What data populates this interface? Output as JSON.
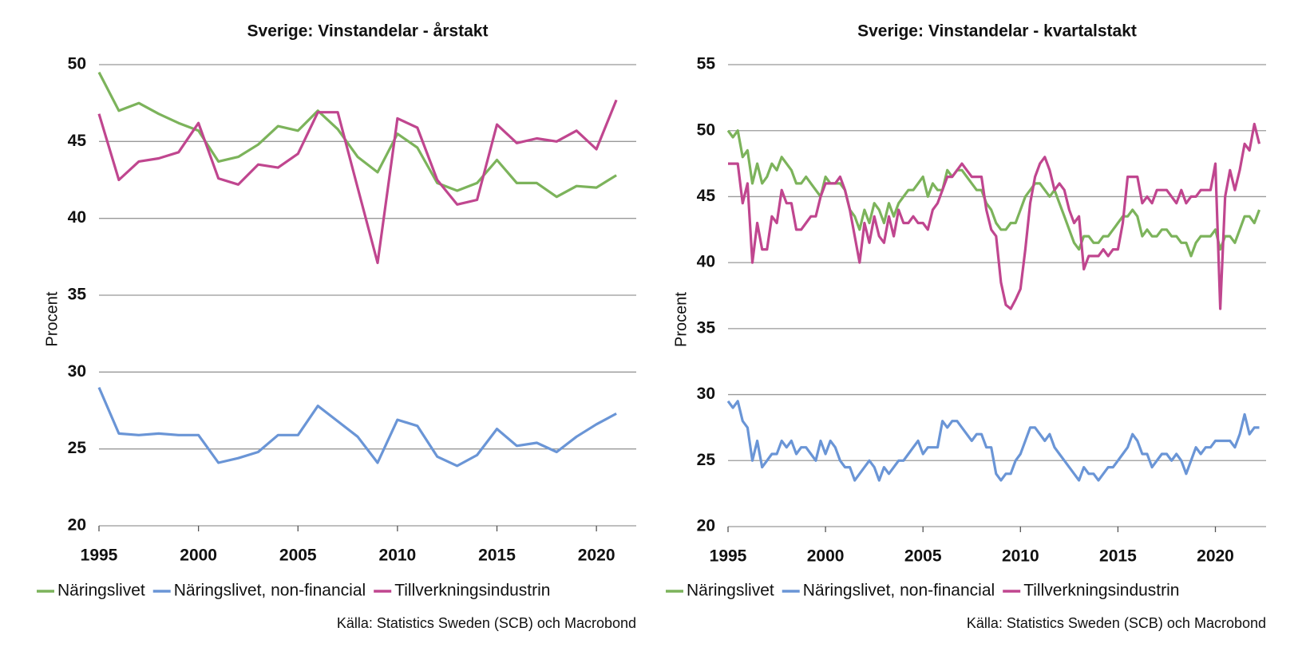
{
  "chart_data": [
    {
      "type": "line",
      "title": "Sverige: Vinstandelar - årstakt",
      "y_label": "Procent",
      "source": "Källa: Statistics Sweden (SCB) och Macrobond",
      "x": [
        1995,
        1996,
        1997,
        1998,
        1999,
        2000,
        2001,
        2002,
        2003,
        2004,
        2005,
        2006,
        2007,
        2008,
        2009,
        2010,
        2011,
        2012,
        2013,
        2014,
        2015,
        2016,
        2017,
        2018,
        2019,
        2020,
        2021
      ],
      "xlim": [
        1995,
        2022
      ],
      "xticks": [
        1995,
        2000,
        2005,
        2010,
        2015,
        2020
      ],
      "ylim": [
        20,
        50
      ],
      "yticks": [
        20,
        25,
        30,
        35,
        40,
        45,
        50
      ],
      "grid": true,
      "legend": "bottom",
      "series": [
        {
          "name": "Näringslivet",
          "color": "#7cb35b",
          "values": [
            49.5,
            47,
            47.5,
            46.8,
            46.2,
            45.7,
            43.7,
            44,
            44.8,
            46,
            45.7,
            47,
            45.8,
            44,
            43,
            45.5,
            44.6,
            42.3,
            41.8,
            42.3,
            43.8,
            42.3,
            42.3,
            41.4,
            42.1,
            42,
            42.8
          ]
        },
        {
          "name": "Näringslivet, non-financial",
          "color": "#6a95d6",
          "values": [
            29,
            26,
            25.9,
            26,
            25.9,
            25.9,
            24.1,
            24.4,
            24.8,
            25.9,
            25.9,
            27.8,
            26.8,
            25.8,
            24.1,
            26.9,
            26.5,
            24.5,
            23.9,
            24.6,
            26.3,
            25.2,
            25.4,
            24.8,
            25.8,
            26.6,
            27.3
          ]
        },
        {
          "name": "Tillverkningsindustrin",
          "color": "#c0468f",
          "values": [
            46.8,
            42.5,
            43.7,
            43.9,
            44.3,
            46.2,
            42.6,
            42.2,
            43.5,
            43.3,
            44.2,
            46.9,
            46.9,
            42,
            37.1,
            46.5,
            45.9,
            42.5,
            40.9,
            41.2,
            46.1,
            44.9,
            45.2,
            45,
            45.7,
            44.5,
            47.7
          ]
        }
      ]
    },
    {
      "type": "line",
      "title": "Sverige: Vinstandelar - kvartalstakt",
      "y_label": "Procent",
      "source": "Källa: Statistics Sweden (SCB) och Macrobond",
      "x": [
        1995,
        1995.25,
        1995.5,
        1995.75,
        1996,
        1996.25,
        1996.5,
        1996.75,
        1997,
        1997.25,
        1997.5,
        1997.75,
        1998,
        1998.25,
        1998.5,
        1998.75,
        1999,
        1999.25,
        1999.5,
        1999.75,
        2000,
        2000.25,
        2000.5,
        2000.75,
        2001,
        2001.25,
        2001.5,
        2001.75,
        2002,
        2002.25,
        2002.5,
        2002.75,
        2003,
        2003.25,
        2003.5,
        2003.75,
        2004,
        2004.25,
        2004.5,
        2004.75,
        2005,
        2005.25,
        2005.5,
        2005.75,
        2006,
        2006.25,
        2006.5,
        2006.75,
        2007,
        2007.25,
        2007.5,
        2007.75,
        2008,
        2008.25,
        2008.5,
        2008.75,
        2009,
        2009.25,
        2009.5,
        2009.75,
        2010,
        2010.25,
        2010.5,
        2010.75,
        2011,
        2011.25,
        2011.5,
        2011.75,
        2012,
        2012.25,
        2012.5,
        2012.75,
        2013,
        2013.25,
        2013.5,
        2013.75,
        2014,
        2014.25,
        2014.5,
        2014.75,
        2015,
        2015.25,
        2015.5,
        2015.75,
        2016,
        2016.25,
        2016.5,
        2016.75,
        2017,
        2017.25,
        2017.5,
        2017.75,
        2018,
        2018.25,
        2018.5,
        2018.75,
        2019,
        2019.25,
        2019.5,
        2019.75,
        2020,
        2020.25,
        2020.5,
        2020.75,
        2021,
        2021.25,
        2021.5,
        2021.75,
        2022,
        2022.25
      ],
      "xlim": [
        1995,
        2022.6
      ],
      "xticks": [
        1995,
        2000,
        2005,
        2010,
        2015,
        2020
      ],
      "ylim": [
        20,
        55
      ],
      "yticks": [
        20,
        25,
        30,
        35,
        40,
        45,
        50,
        55
      ],
      "grid": true,
      "legend": "bottom",
      "series": [
        {
          "name": "Näringslivet",
          "color": "#7cb35b",
          "values": [
            50,
            49.5,
            50,
            48,
            48.5,
            46,
            47.5,
            46,
            46.5,
            47.5,
            47,
            48,
            47.5,
            47,
            46,
            46,
            46.5,
            46,
            45.5,
            45,
            46.5,
            46,
            46,
            46,
            45.5,
            44,
            43.5,
            42.5,
            44,
            43,
            44.5,
            44,
            43,
            44.5,
            43.5,
            44.5,
            45,
            45.5,
            45.5,
            46,
            46.5,
            45,
            46,
            45.5,
            45.5,
            47,
            46.5,
            47,
            47,
            46.5,
            46,
            45.5,
            45.5,
            44.5,
            44,
            43,
            42.5,
            42.5,
            43,
            43,
            44,
            45,
            45.5,
            46,
            46,
            45.5,
            45,
            45.5,
            44.5,
            43.5,
            42.5,
            41.5,
            41,
            42,
            42,
            41.5,
            41.5,
            42,
            42,
            42.5,
            43,
            43.5,
            43.5,
            44,
            43.5,
            42,
            42.5,
            42,
            42,
            42.5,
            42.5,
            42,
            42,
            41.5,
            41.5,
            40.5,
            41.5,
            42,
            42,
            42,
            42.5,
            41,
            42,
            42,
            41.5,
            42.5,
            43.5,
            43.5,
            43,
            44
          ]
        },
        {
          "name": "Näringslivet, non-financial",
          "color": "#6a95d6",
          "values": [
            29.5,
            29,
            29.5,
            28,
            27.5,
            25,
            26.5,
            24.5,
            25,
            25.5,
            25.5,
            26.5,
            26,
            26.5,
            25.5,
            26,
            26,
            25.5,
            25,
            26.5,
            25.5,
            26.5,
            26,
            25,
            24.5,
            24.5,
            23.5,
            24,
            24.5,
            25,
            24.5,
            23.5,
            24.5,
            24,
            24.5,
            25,
            25,
            25.5,
            26,
            26.5,
            25.5,
            26,
            26,
            26,
            28,
            27.5,
            28,
            28,
            27.5,
            27,
            26.5,
            27,
            27,
            26,
            26,
            24,
            23.5,
            24,
            24,
            25,
            25.5,
            26.5,
            27.5,
            27.5,
            27,
            26.5,
            27,
            26,
            25.5,
            25,
            24.5,
            24,
            23.5,
            24.5,
            24,
            24,
            23.5,
            24,
            24.5,
            24.5,
            25,
            25.5,
            26,
            27,
            26.5,
            25.5,
            25.5,
            24.5,
            25,
            25.5,
            25.5,
            25,
            25.5,
            25,
            24,
            25,
            26,
            25.5,
            26,
            26,
            26.5,
            26.5,
            26.5,
            26.5,
            26,
            27,
            28.5,
            27,
            27.5,
            27.5
          ]
        },
        {
          "name": "Tillverkningsindustrin",
          "color": "#c0468f",
          "values": [
            47.5,
            47.5,
            47.5,
            44.5,
            46,
            40,
            43,
            41,
            41,
            43.5,
            43,
            45.5,
            44.5,
            44.5,
            42.5,
            42.5,
            43,
            43.5,
            43.5,
            45,
            46,
            46,
            46,
            46.5,
            45.5,
            44,
            42,
            40,
            43,
            41.5,
            43.5,
            42,
            41.5,
            43.5,
            42,
            44,
            43,
            43,
            43.5,
            43,
            43,
            42.5,
            44,
            44.5,
            45.5,
            46.5,
            46.5,
            47,
            47.5,
            47,
            46.5,
            46.5,
            46.5,
            44,
            42.5,
            42,
            38.5,
            36.8,
            36.5,
            37.2,
            38,
            41,
            44.5,
            46.5,
            47.5,
            48,
            47,
            45.5,
            46,
            45.5,
            44,
            43,
            43.5,
            39.5,
            40.5,
            40.5,
            40.5,
            41,
            40.5,
            41,
            41,
            43,
            46.5,
            46.5,
            46.5,
            44.5,
            45,
            44.5,
            45.5,
            45.5,
            45.5,
            45,
            44.5,
            45.5,
            44.5,
            45,
            45,
            45.5,
            45.5,
            45.5,
            47.5,
            36.5,
            45,
            47,
            45.5,
            47,
            49,
            48.5,
            50.5,
            49
          ]
        }
      ]
    }
  ]
}
